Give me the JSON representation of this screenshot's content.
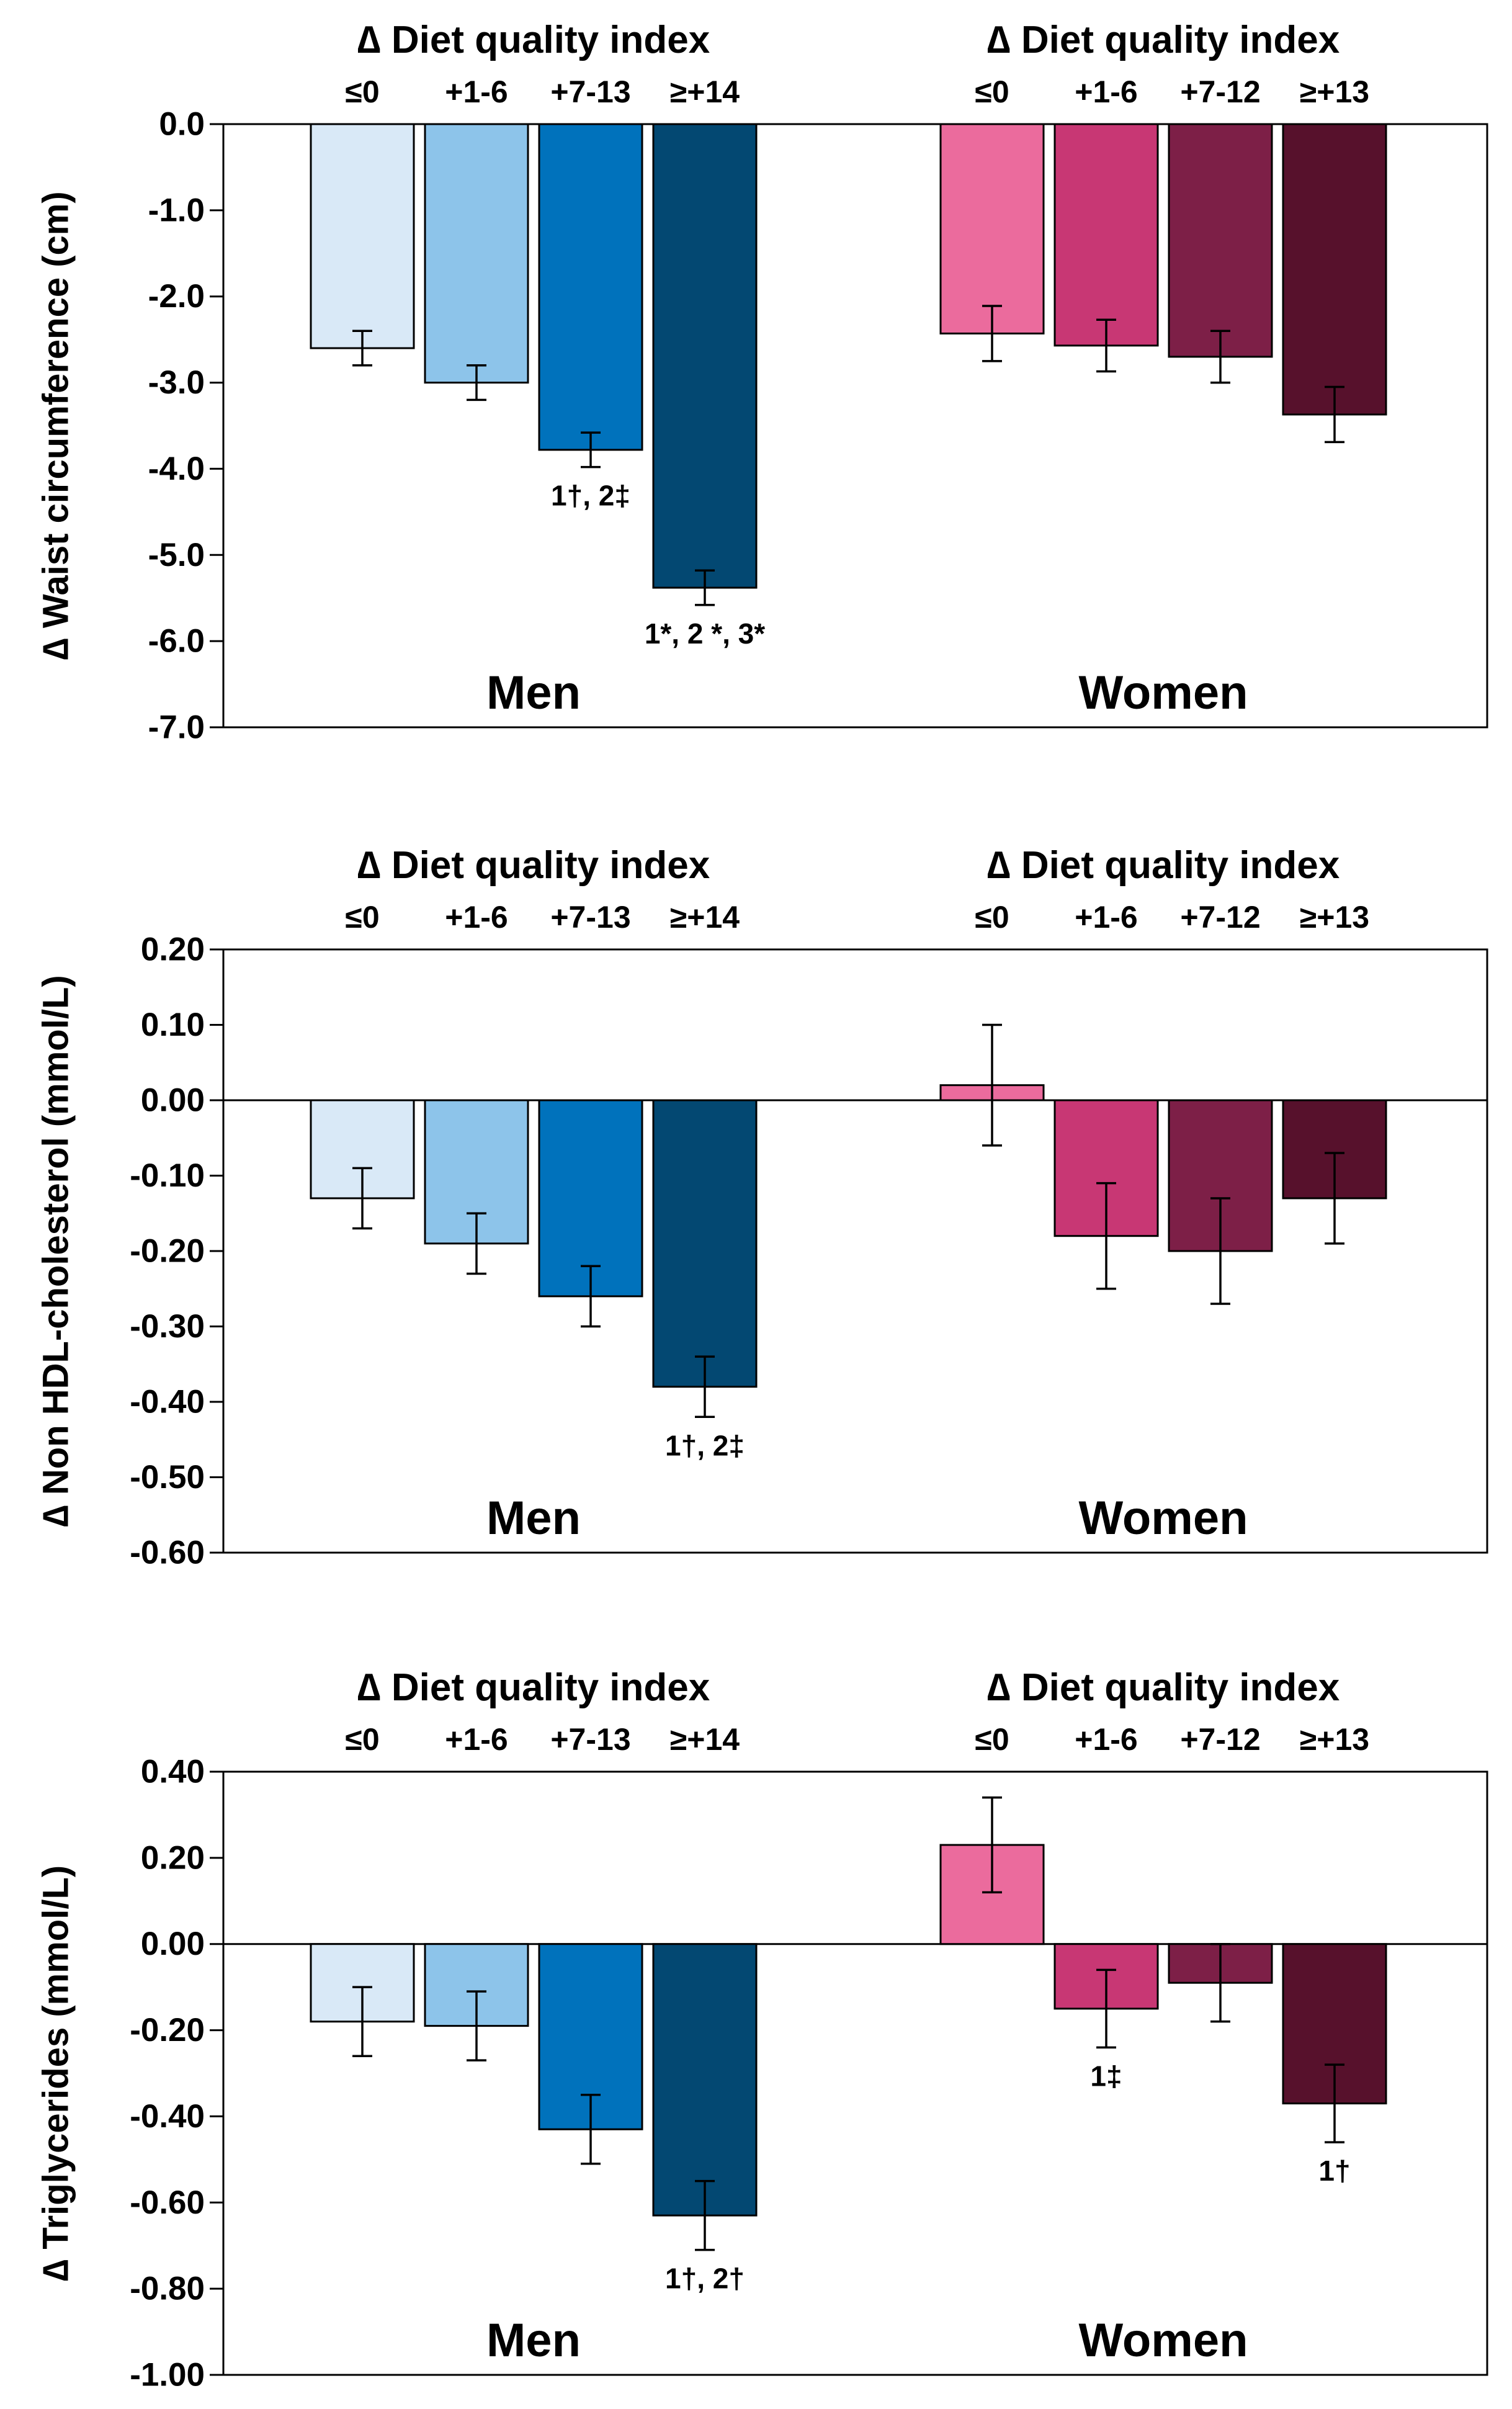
{
  "chart_data": [
    {
      "type": "bar",
      "ylabel": "∆ Waist circumference (cm)",
      "ylim": [
        -7.0,
        0.0
      ],
      "yticks": [
        "0.0",
        "-1.0",
        "-2.0",
        "-3.0",
        "-4.0",
        "-5.0",
        "-6.0",
        "-7.0"
      ],
      "groups": [
        {
          "name": "Men",
          "header": "∆ Diet quality index",
          "categories": [
            "≤0",
            "+1-6",
            "+7-13",
            "≥+14"
          ],
          "values": [
            -2.6,
            -3.0,
            -3.78,
            -5.38
          ],
          "errors": [
            0.2,
            0.2,
            0.2,
            0.2
          ],
          "colors": [
            "#d9e9f7",
            "#8dc4ea",
            "#0072bc",
            "#034872"
          ],
          "annotations": [
            "",
            "",
            "1†, 2‡",
            "1*, 2 *, 3*"
          ]
        },
        {
          "name": "Women",
          "header": "∆ Diet quality index",
          "categories": [
            "≤0",
            "+1-6",
            "+7-12",
            "≥+13"
          ],
          "values": [
            -2.43,
            -2.57,
            -2.7,
            -3.37
          ],
          "errors": [
            0.32,
            0.3,
            0.3,
            0.32
          ],
          "colors": [
            "#eb6b9d",
            "#c83774",
            "#7d1f47",
            "#57112c"
          ],
          "annotations": [
            "",
            "",
            "",
            ""
          ]
        }
      ]
    },
    {
      "type": "bar",
      "ylabel": "∆ Non HDL-cholesterol (mmol/L)",
      "ylim": [
        -0.6,
        0.2
      ],
      "yticks": [
        "0.20",
        "0.10",
        "0.00",
        "-0.10",
        "-0.20",
        "-0.30",
        "-0.40",
        "-0.50",
        "-0.60"
      ],
      "groups": [
        {
          "name": "Men",
          "header": "∆ Diet quality index",
          "categories": [
            "≤0",
            "+1-6",
            "+7-13",
            "≥+14"
          ],
          "values": [
            -0.13,
            -0.19,
            -0.26,
            -0.38
          ],
          "errors": [
            0.04,
            0.04,
            0.04,
            0.04
          ],
          "colors": [
            "#d9e9f7",
            "#8dc4ea",
            "#0072bc",
            "#034872"
          ],
          "annotations": [
            "",
            "",
            "",
            "1†, 2‡"
          ]
        },
        {
          "name": "Women",
          "header": "∆ Diet quality index",
          "categories": [
            "≤0",
            "+1-6",
            "+7-12",
            "≥+13"
          ],
          "values": [
            0.02,
            -0.18,
            -0.2,
            -0.13
          ],
          "errors": [
            0.08,
            0.07,
            0.07,
            0.06
          ],
          "colors": [
            "#eb6b9d",
            "#c83774",
            "#7d1f47",
            "#57112c"
          ],
          "annotations": [
            "",
            "",
            "",
            ""
          ]
        }
      ]
    },
    {
      "type": "bar",
      "ylabel": "∆ Triglycerides (mmol/L)",
      "ylim": [
        -1.0,
        0.4
      ],
      "yticks": [
        "0.40",
        "0.20",
        "0.00",
        "-0.20",
        "-0.40",
        "-0.60",
        "-0.80",
        "-1.00"
      ],
      "groups": [
        {
          "name": "Men",
          "header": "∆ Diet quality index",
          "categories": [
            "≤0",
            "+1-6",
            "+7-13",
            "≥+14"
          ],
          "values": [
            -0.18,
            -0.19,
            -0.43,
            -0.63
          ],
          "errors": [
            0.08,
            0.08,
            0.08,
            0.08
          ],
          "colors": [
            "#d9e9f7",
            "#8dc4ea",
            "#0072bc",
            "#034872"
          ],
          "annotations": [
            "",
            "",
            "",
            "1†, 2†"
          ]
        },
        {
          "name": "Women",
          "header": "∆ Diet quality index",
          "categories": [
            "≤0",
            "+1-6",
            "+7-12",
            "≥+13"
          ],
          "values": [
            0.23,
            -0.15,
            -0.09,
            -0.37
          ],
          "errors": [
            0.11,
            0.09,
            0.09,
            0.09
          ],
          "colors": [
            "#eb6b9d",
            "#c83774",
            "#7d1f47",
            "#57112c"
          ],
          "annotations": [
            "",
            "1‡",
            "",
            "1†"
          ]
        }
      ]
    }
  ]
}
